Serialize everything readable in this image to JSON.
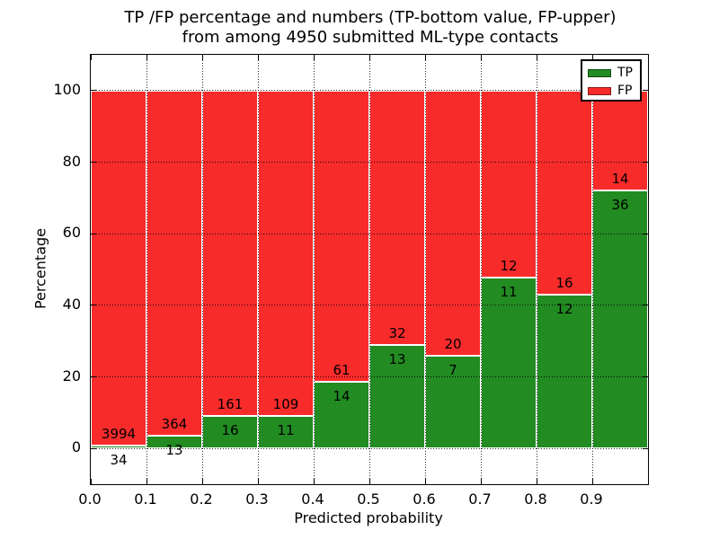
{
  "title": {
    "line1": "TP /FP percentage and numbers (TP-bottom value, FP-upper)",
    "line2": "from among 4950 submitted ML-type contacts"
  },
  "chart_data": {
    "type": "bar",
    "stacked": true,
    "normalized_to_percent": true,
    "title": "TP /FP percentage and numbers (TP-bottom value, FP-upper)\nfrom among 4950 submitted ML-type contacts",
    "xlabel": "Predicted probability",
    "ylabel": "Percentage",
    "total_contacts": 4950,
    "bin_width": 0.1,
    "bin_starts": [
      0.0,
      0.1,
      0.2,
      0.3,
      0.4,
      0.5,
      0.6,
      0.7,
      0.8,
      0.9
    ],
    "series": [
      {
        "name": "TP",
        "color": "#228b22",
        "counts": [
          34,
          13,
          16,
          11,
          14,
          13,
          7,
          11,
          12,
          36
        ]
      },
      {
        "name": "FP",
        "color": "#f82b2b",
        "counts": [
          3994,
          364,
          161,
          109,
          61,
          32,
          20,
          12,
          16,
          14
        ]
      }
    ],
    "tp_percentages": [
      0.84,
      3.45,
      9.04,
      9.17,
      18.67,
      28.89,
      25.93,
      47.83,
      42.86,
      72.0
    ],
    "x_tick_values": [
      0.0,
      0.1,
      0.2,
      0.3,
      0.4,
      0.5,
      0.6,
      0.7,
      0.8,
      0.9
    ],
    "x_tick_labels": [
      "0.0",
      "0.1",
      "0.2",
      "0.3",
      "0.4",
      "0.5",
      "0.6",
      "0.7",
      "0.8",
      "0.9"
    ],
    "y_tick_values": [
      0,
      20,
      40,
      60,
      80,
      100
    ],
    "y_tick_labels": [
      "0",
      "20",
      "40",
      "60",
      "80",
      "100"
    ],
    "xlim": [
      0.0,
      1.0
    ],
    "ylim": [
      -10,
      110
    ],
    "grid": "dotted",
    "legend": {
      "position": "upper right",
      "entries": [
        {
          "label": "TP",
          "color": "#228b22"
        },
        {
          "label": "FP",
          "color": "#f82b2b"
        }
      ]
    }
  }
}
